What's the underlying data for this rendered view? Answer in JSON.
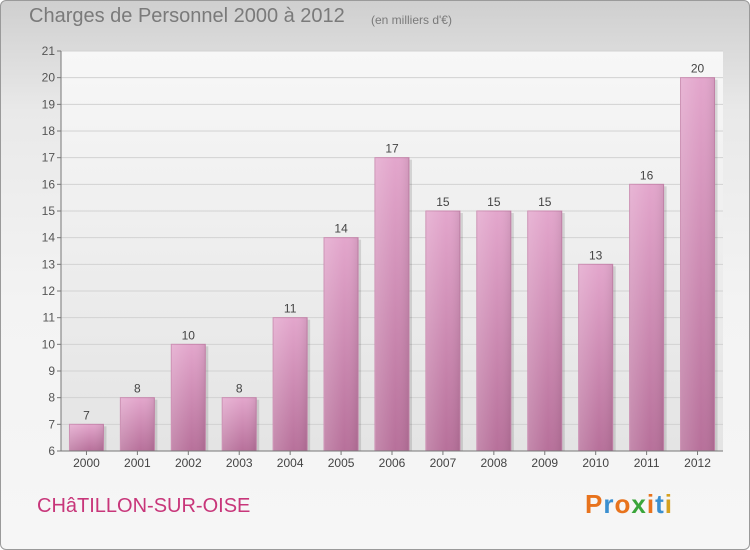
{
  "title": "Charges de Personnel 2000 à 2012",
  "subtitle": "(en milliers d'€)",
  "commune": "CHâTILLON-SUR-OISE",
  "logo": {
    "letters": [
      "P",
      "r",
      "o",
      "x",
      "i",
      "t",
      "i"
    ],
    "colors": [
      "#e8731d",
      "#3a8fd0",
      "#e8731d",
      "#3aa53a",
      "#e8731d",
      "#3a8fd0",
      "#d6a11f"
    ]
  },
  "chart_data": {
    "type": "bar",
    "categories": [
      "2000",
      "2001",
      "2002",
      "2003",
      "2004",
      "2005",
      "2006",
      "2007",
      "2008",
      "2009",
      "2010",
      "2011",
      "2012"
    ],
    "values": [
      7,
      8,
      10,
      8,
      11,
      14,
      17,
      15,
      15,
      15,
      13,
      16,
      20
    ],
    "ylim": [
      6,
      21
    ],
    "yticks": [
      6,
      7,
      8,
      9,
      10,
      11,
      12,
      13,
      14,
      15,
      16,
      17,
      18,
      19,
      20,
      21
    ],
    "grid": true,
    "bar_color": "#d98fbb"
  }
}
